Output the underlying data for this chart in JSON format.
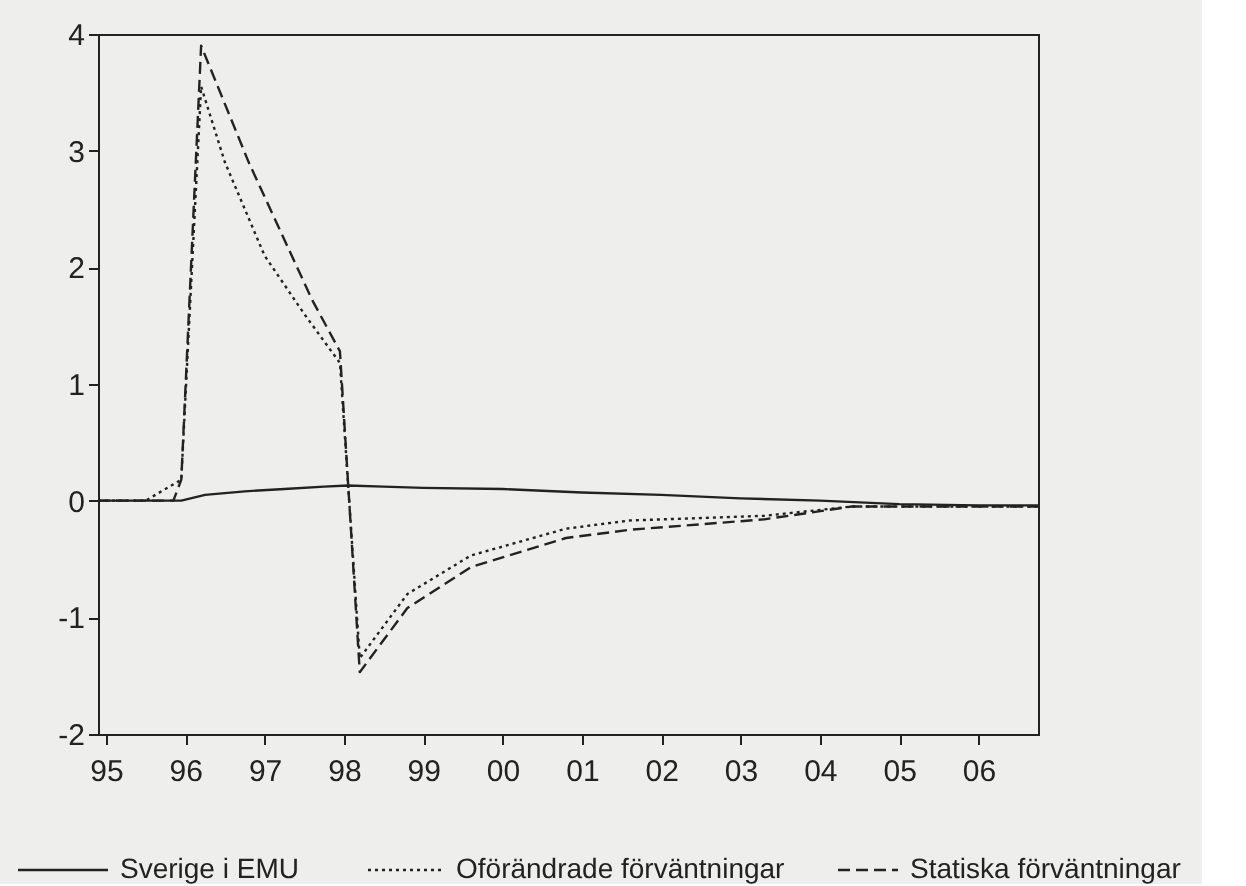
{
  "chart_data": {
    "type": "line",
    "xlim": [
      1994.9,
      2006.75
    ],
    "ylim": [
      -2,
      4
    ],
    "xticks": [
      {
        "value": 1995,
        "label": "95"
      },
      {
        "value": 1996,
        "label": "96"
      },
      {
        "value": 1997,
        "label": "97"
      },
      {
        "value": 1998,
        "label": "98"
      },
      {
        "value": 1999,
        "label": "99"
      },
      {
        "value": 2000,
        "label": "00"
      },
      {
        "value": 2001,
        "label": "01"
      },
      {
        "value": 2002,
        "label": "02"
      },
      {
        "value": 2003,
        "label": "03"
      },
      {
        "value": 2004,
        "label": "04"
      },
      {
        "value": 2005,
        "label": "05"
      },
      {
        "value": 2006,
        "label": "06"
      }
    ],
    "yticks": [
      -2,
      -1,
      0,
      1,
      2,
      3,
      4
    ],
    "grid": false,
    "legend": "bottom",
    "marker": "none",
    "series": [
      {
        "name": "Sverige i EMU",
        "color": "#222222",
        "line_style": "solid",
        "x": [
          1994.9,
          1995.5,
          1995.95,
          1996.25,
          1996.75,
          1997.25,
          1997.75,
          1998.05,
          1998.5,
          1999,
          2000,
          2001,
          2002,
          2003,
          2004,
          2005,
          2006,
          2006.75
        ],
        "values": [
          0,
          0,
          0,
          0.05,
          0.08,
          0.1,
          0.12,
          0.13,
          0.12,
          0.11,
          0.1,
          0.07,
          0.05,
          0.02,
          0,
          -0.03,
          -0.04,
          -0.04
        ]
      },
      {
        "name": "Oförändrade förväntningar",
        "color": "#222222",
        "line_style": "dotted",
        "x": [
          1994.9,
          1995.5,
          1995.95,
          1996.2,
          1996.5,
          1997,
          1997.5,
          1997.95,
          1998.2,
          1998.8,
          1999.6,
          2000.8,
          2001.6,
          2003.3,
          2004.4,
          2005.5,
          2006.75
        ],
        "values": [
          0,
          0,
          0.18,
          3.55,
          2.9,
          2.1,
          1.6,
          1.18,
          -1.35,
          -0.8,
          -0.47,
          -0.24,
          -0.17,
          -0.13,
          -0.05,
          -0.05,
          -0.05
        ]
      },
      {
        "name": "Statiska förväntningar",
        "color": "#222222",
        "line_style": "dashed",
        "x": [
          1994.9,
          1995.5,
          1995.85,
          1995.95,
          1996.2,
          1996.8,
          1997.6,
          1997.95,
          1998.2,
          1998.8,
          1999.6,
          2000.8,
          2001.6,
          2003.3,
          2004.4,
          2005.5,
          2006.75
        ],
        "values": [
          0,
          0,
          0,
          0.18,
          3.9,
          2.9,
          1.72,
          1.28,
          -1.47,
          -0.92,
          -0.57,
          -0.32,
          -0.25,
          -0.16,
          -0.05,
          -0.05,
          -0.05
        ]
      }
    ]
  }
}
